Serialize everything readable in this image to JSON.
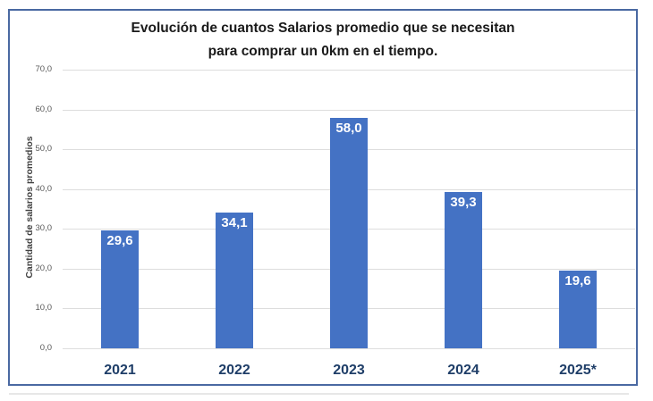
{
  "chart_data": {
    "type": "bar",
    "title": "Evolución de cuantos Salarios promedio que se necesitan para comprar un 0km en el tiempo.",
    "title_line1": "Evolución de cuantos Salarios promedio que se necesitan",
    "title_line2": "para comprar un 0km en el tiempo.",
    "xlabel": "",
    "ylabel": "Cantidad de salarios promedios",
    "categories": [
      "2021",
      "2022",
      "2023",
      "2024",
      "2025*"
    ],
    "values": [
      29.6,
      34.1,
      58.0,
      39.3,
      19.6
    ],
    "value_labels": [
      "29,6",
      "34,1",
      "58,0",
      "39,3",
      "19,6"
    ],
    "ylim": [
      0,
      70
    ],
    "ytick_step": 10,
    "ytick_labels": [
      "0,0",
      "10,0",
      "20,0",
      "30,0",
      "40,0",
      "50,0",
      "60,0",
      "70,0"
    ],
    "grid": true,
    "legend_position": "none",
    "colors": {
      "bar": "#4472C4",
      "bar_value_label": "#FFFFFF",
      "x_tick_label": "#1F3E68",
      "y_tick_label": "#595959",
      "gridline": "#DDDDDD",
      "frame_border": "#4A69A2",
      "title": "#1A1A1A"
    }
  }
}
